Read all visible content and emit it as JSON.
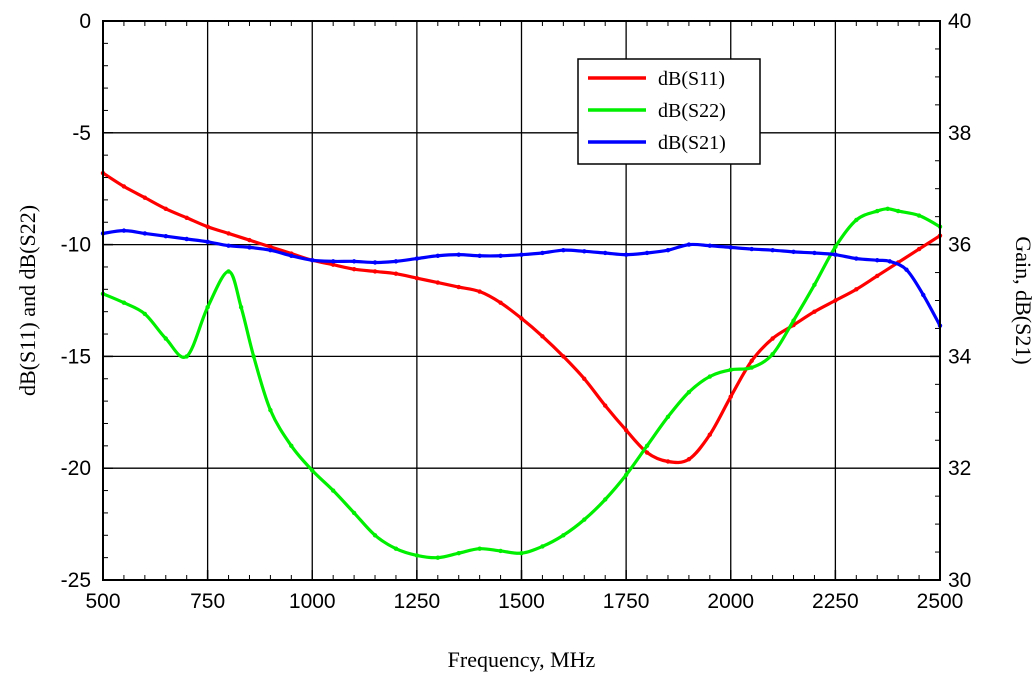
{
  "chart_data": {
    "type": "line",
    "xlabel": "Frequency, MHz",
    "ylabel_left": "dB(S11) and dB(S22)",
    "ylabel_right": "Gain, dB(S21)",
    "xlim": [
      500,
      2500
    ],
    "ylim_left": [
      -25,
      0
    ],
    "ylim_right": [
      30,
      40
    ],
    "x_ticks": [
      500,
      750,
      1000,
      1250,
      1500,
      1750,
      2000,
      2250,
      2500
    ],
    "y_ticks_left": [
      0,
      -5,
      -10,
      -15,
      -20,
      -25
    ],
    "y_ticks_right": [
      40,
      38,
      36,
      34,
      32,
      30
    ],
    "grid": true,
    "legend_position": "top-right",
    "series": [
      {
        "name": "dB(S11)",
        "axis": "left",
        "color": "#ff0000",
        "x": [
          500,
          550,
          600,
          650,
          700,
          750,
          800,
          850,
          900,
          950,
          1000,
          1050,
          1100,
          1150,
          1200,
          1250,
          1300,
          1350,
          1400,
          1450,
          1500,
          1550,
          1600,
          1650,
          1700,
          1750,
          1800,
          1850,
          1900,
          1950,
          2000,
          2050,
          2100,
          2150,
          2200,
          2250,
          2300,
          2350,
          2400,
          2450,
          2500
        ],
        "values": [
          -6.8,
          -7.4,
          -7.9,
          -8.4,
          -8.8,
          -9.2,
          -9.5,
          -9.8,
          -10.1,
          -10.4,
          -10.7,
          -10.9,
          -11.1,
          -11.2,
          -11.3,
          -11.5,
          -11.7,
          -11.9,
          -12.1,
          -12.6,
          -13.3,
          -14.1,
          -15.0,
          -16.0,
          -17.2,
          -18.3,
          -19.3,
          -19.7,
          -19.6,
          -18.5,
          -16.8,
          -15.2,
          -14.2,
          -13.6,
          -13.0,
          -12.5,
          -12.0,
          -11.4,
          -10.8,
          -10.2,
          -9.6
        ]
      },
      {
        "name": "dB(S22)",
        "axis": "left",
        "color": "#00ee00",
        "x": [
          500,
          550,
          600,
          650,
          700,
          750,
          800,
          830,
          860,
          900,
          950,
          1000,
          1050,
          1100,
          1150,
          1200,
          1250,
          1300,
          1350,
          1400,
          1450,
          1500,
          1550,
          1600,
          1650,
          1700,
          1750,
          1800,
          1850,
          1900,
          1950,
          2000,
          2050,
          2100,
          2150,
          2200,
          2250,
          2300,
          2350,
          2375,
          2400,
          2450,
          2500
        ],
        "values": [
          -12.2,
          -12.6,
          -13.1,
          -14.2,
          -15.0,
          -12.8,
          -11.2,
          -12.8,
          -15.0,
          -17.4,
          -19.0,
          -20.1,
          -21.0,
          -22.0,
          -23.0,
          -23.6,
          -23.9,
          -24.0,
          -23.8,
          -23.6,
          -23.7,
          -23.8,
          -23.5,
          -23.0,
          -22.3,
          -21.4,
          -20.3,
          -19.0,
          -17.7,
          -16.6,
          -15.9,
          -15.6,
          -15.5,
          -14.9,
          -13.4,
          -11.8,
          -10.1,
          -8.9,
          -8.5,
          -8.4,
          -8.5,
          -8.7,
          -9.2
        ]
      },
      {
        "name": "dB(S21)",
        "axis": "right",
        "color": "#0000ff",
        "x": [
          500,
          550,
          600,
          650,
          700,
          750,
          800,
          850,
          900,
          950,
          1000,
          1050,
          1100,
          1150,
          1200,
          1250,
          1300,
          1350,
          1400,
          1450,
          1500,
          1550,
          1600,
          1650,
          1700,
          1750,
          1800,
          1850,
          1900,
          1950,
          2000,
          2050,
          2100,
          2150,
          2200,
          2250,
          2300,
          2350,
          2380,
          2420,
          2460,
          2500
        ],
        "values": [
          36.2,
          36.25,
          36.2,
          36.15,
          36.1,
          36.05,
          35.98,
          35.95,
          35.9,
          35.8,
          35.72,
          35.7,
          35.7,
          35.68,
          35.7,
          35.75,
          35.8,
          35.82,
          35.8,
          35.8,
          35.82,
          35.85,
          35.9,
          35.88,
          35.85,
          35.82,
          35.85,
          35.9,
          36.0,
          35.98,
          35.95,
          35.92,
          35.9,
          35.87,
          35.85,
          35.82,
          35.75,
          35.72,
          35.7,
          35.55,
          35.1,
          34.55
        ]
      }
    ]
  }
}
